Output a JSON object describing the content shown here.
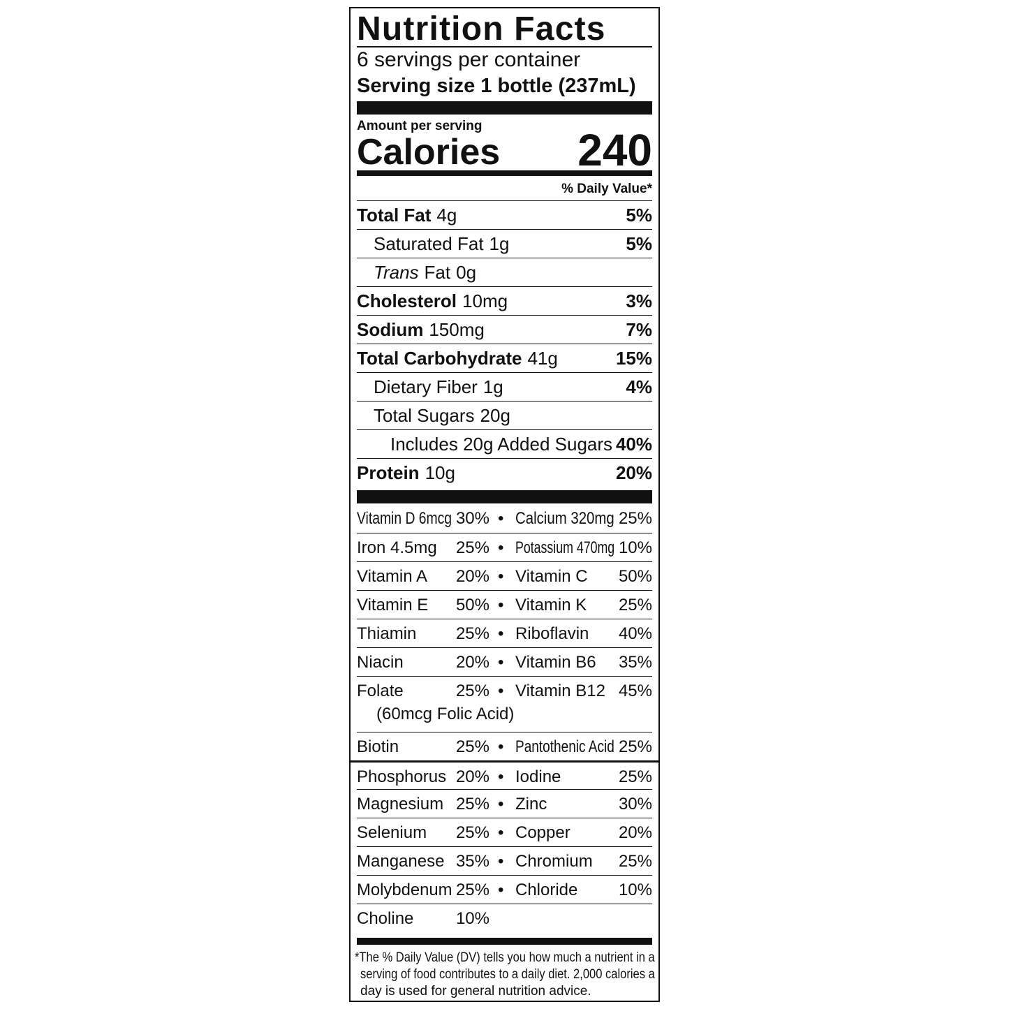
{
  "title": "Nutrition Facts",
  "servings_per_container": "6 servings per container",
  "serving_size": "Serving size 1 bottle (237mL)",
  "amount_per_serving": "Amount per serving",
  "calories_label": "Calories",
  "calories_value": "240",
  "daily_value_header": "% Daily Value*",
  "nutrients": [
    {
      "name": "Total Fat",
      "amount": "4g",
      "dv": "5%",
      "bold": true,
      "indent": 0
    },
    {
      "name": "Saturated Fat",
      "amount": "1g",
      "dv": "5%",
      "bold": false,
      "indent": 1
    },
    {
      "name": "Trans",
      "name_suffix": "Fat",
      "amount": "0g",
      "dv": "",
      "bold": false,
      "italic": true,
      "indent": 1
    },
    {
      "name": "Cholesterol",
      "amount": "10mg",
      "dv": "3%",
      "bold": true,
      "indent": 0
    },
    {
      "name": "Sodium",
      "amount": "150mg",
      "dv": "7%",
      "bold": true,
      "indent": 0
    },
    {
      "name": "Total Carbohydrate",
      "amount": "41g",
      "dv": "15%",
      "bold": true,
      "indent": 0
    },
    {
      "name": "Dietary Fiber",
      "amount": "1g",
      "dv": "4%",
      "bold": false,
      "indent": 1
    },
    {
      "name": "Total Sugars",
      "amount": "20g",
      "dv": "",
      "bold": false,
      "indent": 1
    },
    {
      "name": "Includes 20g Added Sugars",
      "amount": "",
      "dv": "40%",
      "bold": false,
      "indent": 2
    },
    {
      "name": "Protein",
      "amount": "10g",
      "dv": "20%",
      "bold": true,
      "indent": 0
    }
  ],
  "vitamins": [
    {
      "left": "Vitamin D 6mcg",
      "left_dv": "30%",
      "right": "Calcium 320mg",
      "right_dv": "25%"
    },
    {
      "left": "Iron 4.5mg",
      "left_dv": "25%",
      "right": "Potassium 470mg",
      "right_dv": "10%"
    },
    {
      "left": "Vitamin A",
      "left_dv": "20%",
      "right": "Vitamin C",
      "right_dv": "50%"
    },
    {
      "left": "Vitamin E",
      "left_dv": "50%",
      "right": "Vitamin K",
      "right_dv": "25%"
    },
    {
      "left": "Thiamin",
      "left_dv": "25%",
      "right": "Riboflavin",
      "right_dv": "40%"
    },
    {
      "left": "Niacin",
      "left_dv": "20%",
      "right": "Vitamin B6",
      "right_dv": "35%"
    },
    {
      "left": "Folate",
      "left_sub": "(60mcg Folic Acid)",
      "left_dv": "25%",
      "right": "Vitamin B12",
      "right_dv": "45%"
    },
    {
      "left": "Biotin",
      "left_dv": "25%",
      "right": "Pantothenic Acid",
      "right_dv": "25%"
    },
    {
      "left": "Phosphorus",
      "left_dv": "20%",
      "right": "Iodine",
      "right_dv": "25%",
      "section_break": true
    },
    {
      "left": "Magnesium",
      "left_dv": "25%",
      "right": "Zinc",
      "right_dv": "30%"
    },
    {
      "left": "Selenium",
      "left_dv": "25%",
      "right": "Copper",
      "right_dv": "20%"
    },
    {
      "left": "Manganese",
      "left_dv": "35%",
      "right": "Chromium",
      "right_dv": "25%"
    },
    {
      "left": "Molybdenum",
      "left_dv": "25%",
      "right": "Chloride",
      "right_dv": "10%"
    },
    {
      "left": "Choline",
      "left_dv": "10%",
      "right": "",
      "right_dv": ""
    }
  ],
  "footnote": [
    "*The % Daily Value (DV) tells you how much a nutrient in a",
    "serving of food contributes to a daily diet. 2,000 calories a",
    "day is used for general nutrition advice."
  ]
}
